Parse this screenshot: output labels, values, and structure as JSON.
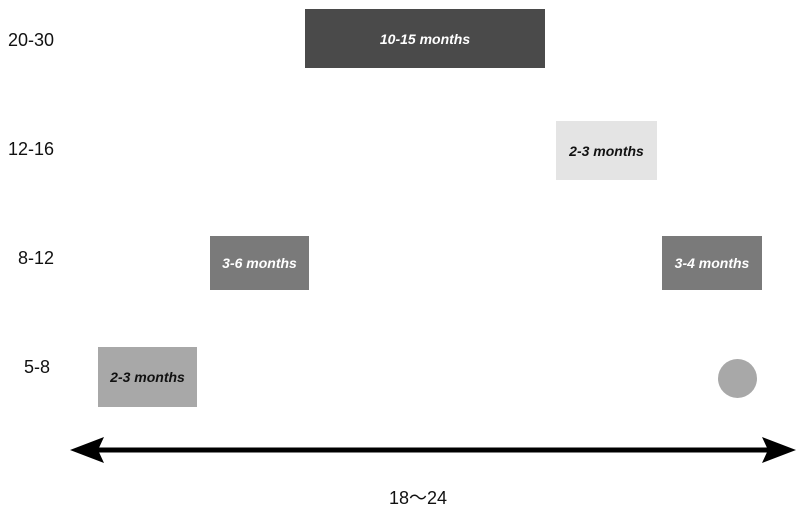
{
  "rows": [
    {
      "label": "20-30"
    },
    {
      "label": "12-16"
    },
    {
      "label": "8-12"
    },
    {
      "label": "5-8"
    }
  ],
  "bars": [
    {
      "label": "10-15 months",
      "fill": "#4a4a4a",
      "text_color": "#ffffff"
    },
    {
      "label": "2-3 months",
      "fill": "#e4e4e4",
      "text_color": "#111111"
    },
    {
      "label": "3-6 months",
      "fill": "#7a7a7a",
      "text_color": "#ffffff"
    },
    {
      "label": "3-4 months",
      "fill": "#7a7a7a",
      "text_color": "#ffffff"
    },
    {
      "label": "2-3 months",
      "fill": "#a8a8a8",
      "text_color": "#111111"
    }
  ],
  "end_marker": {
    "color": "#a8a8a8"
  },
  "axis": {
    "caption": "18～24",
    "color": "#000000"
  }
}
